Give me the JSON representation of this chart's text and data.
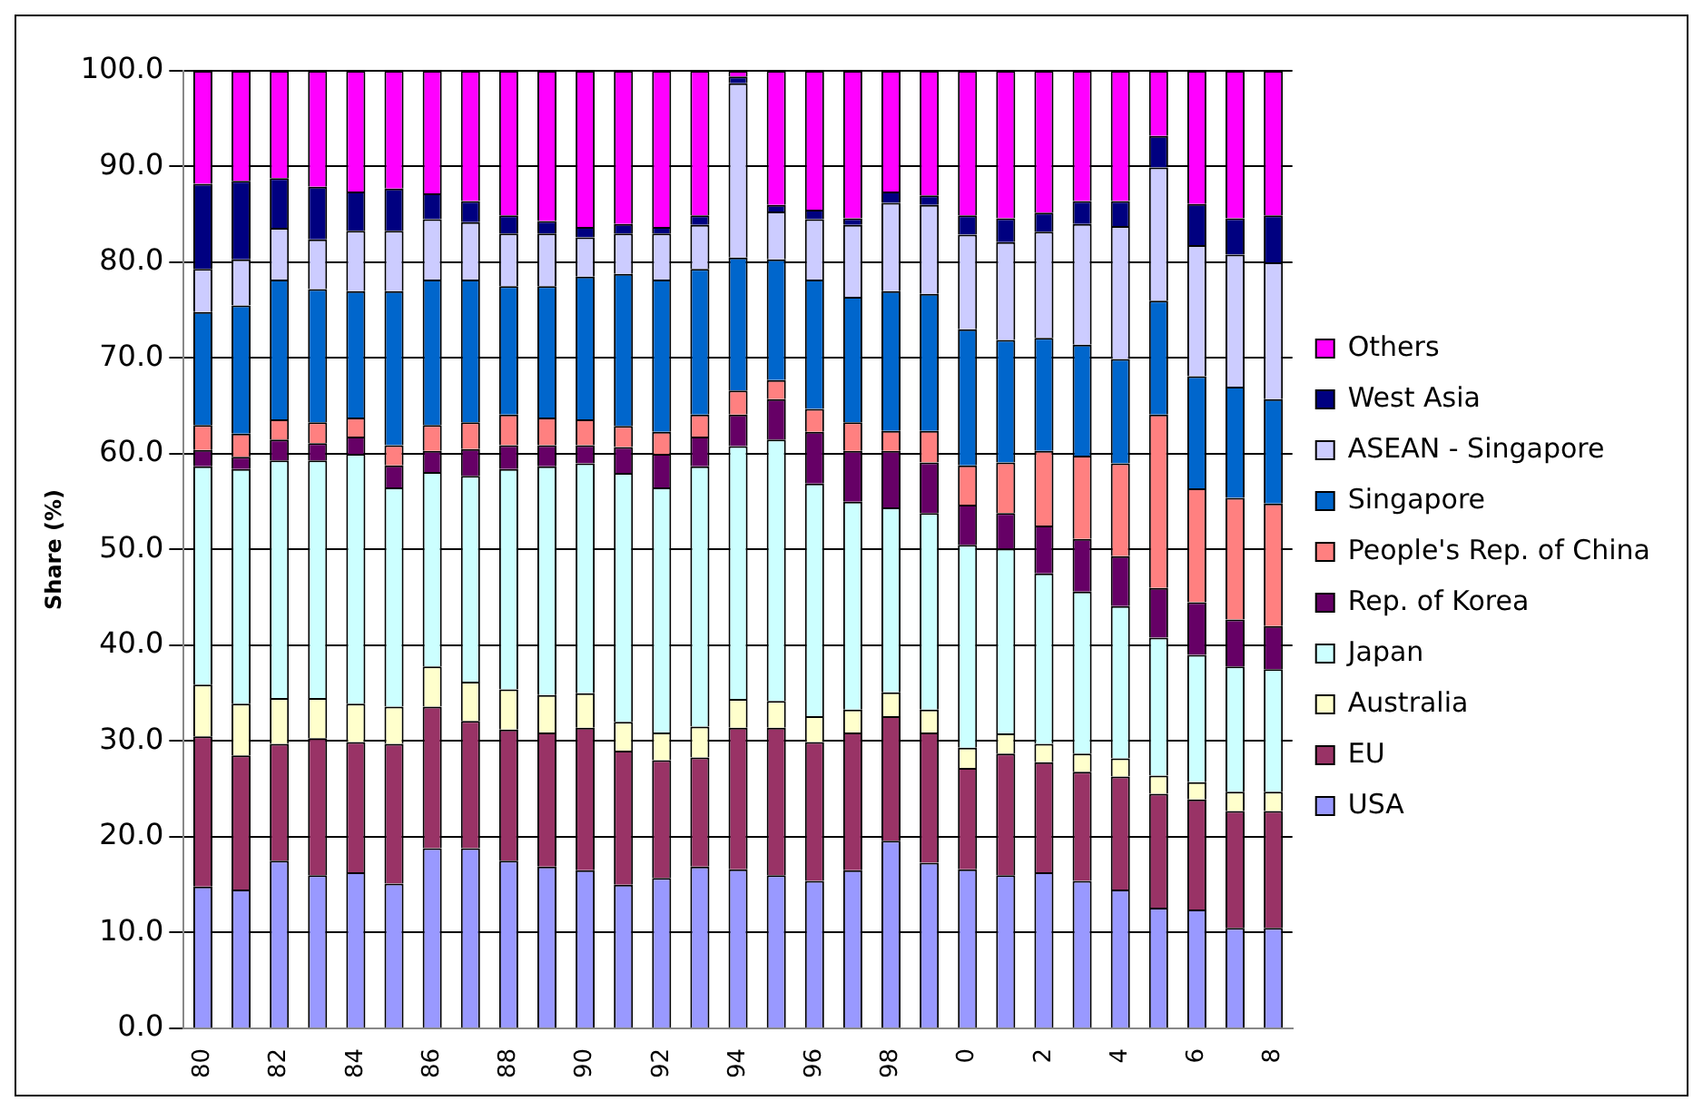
{
  "chart_data": {
    "type": "bar",
    "stacked": true,
    "ylabel": "Share (%)",
    "categories": [
      "80",
      null,
      "82",
      null,
      "84",
      null,
      "86",
      null,
      "88",
      null,
      "90",
      null,
      "92",
      null,
      "94",
      null,
      "96",
      null,
      "98",
      null,
      "0",
      null,
      "2",
      null,
      "4",
      null,
      "6",
      null,
      "8"
    ],
    "series": [
      {
        "name": "USA",
        "color": "#9999ff",
        "values": [
          14.8,
          14.5,
          17.5,
          16.0,
          16.3,
          15.1,
          18.8,
          18.8,
          17.5,
          16.9,
          16.5,
          15.0,
          15.7,
          16.9,
          16.6,
          16.0,
          15.4,
          16.5,
          19.6,
          17.3,
          16.6,
          16.0,
          16.3,
          15.4,
          14.5,
          12.6,
          12.4,
          10.5,
          10.5
        ]
      },
      {
        "name": "EU",
        "color": "#993366",
        "values": [
          15.7,
          14.0,
          12.2,
          14.3,
          13.6,
          14.6,
          14.8,
          13.3,
          13.7,
          14.0,
          14.9,
          14.0,
          12.3,
          11.4,
          14.8,
          15.4,
          14.5,
          14.4,
          13.0,
          13.6,
          10.6,
          12.7,
          11.5,
          11.4,
          11.8,
          11.9,
          11.5,
          12.2,
          12.2
        ]
      },
      {
        "name": "Australia",
        "color": "#ffffcc",
        "values": [
          5.4,
          5.4,
          4.8,
          4.2,
          4.0,
          3.9,
          4.2,
          4.1,
          4.2,
          3.9,
          3.6,
          3.0,
          2.9,
          3.2,
          3.0,
          2.8,
          2.7,
          2.4,
          2.5,
          2.4,
          2.1,
          2.1,
          1.9,
          1.9,
          1.9,
          1.9,
          1.8,
          2.0,
          2.0
        ]
      },
      {
        "name": "Japan",
        "color": "#ccffff",
        "values": [
          22.8,
          24.5,
          24.8,
          24.8,
          26.1,
          22.9,
          20.3,
          21.5,
          23.0,
          23.9,
          24.0,
          26.0,
          25.6,
          27.2,
          26.4,
          27.3,
          24.3,
          21.7,
          19.3,
          20.5,
          21.2,
          19.3,
          17.8,
          16.9,
          15.9,
          14.4,
          13.3,
          13.1,
          12.8
        ]
      },
      {
        "name": "Rep. of Korea",
        "color": "#660066",
        "values": [
          1.7,
          1.3,
          2.2,
          1.8,
          1.8,
          2.3,
          2.2,
          2.8,
          2.5,
          2.2,
          1.9,
          2.7,
          3.5,
          3.1,
          3.3,
          4.2,
          5.4,
          5.3,
          5.9,
          5.3,
          4.2,
          3.7,
          5.0,
          5.5,
          5.2,
          5.2,
          5.5,
          4.9,
          4.5
        ]
      },
      {
        "name": "People's Rep. of China",
        "color": "#ff8080",
        "values": [
          2.6,
          2.4,
          2.1,
          2.2,
          2.0,
          2.1,
          2.7,
          2.8,
          3.2,
          2.9,
          2.7,
          2.2,
          2.3,
          2.3,
          2.5,
          2.0,
          2.4,
          3.0,
          2.1,
          3.3,
          4.1,
          5.3,
          7.8,
          8.7,
          9.7,
          18.1,
          11.9,
          12.7,
          12.8
        ]
      },
      {
        "name": "Singapore",
        "color": "#0066cc",
        "values": [
          11.8,
          13.4,
          14.6,
          13.9,
          13.2,
          16.1,
          15.2,
          14.9,
          13.4,
          13.7,
          14.9,
          15.9,
          15.9,
          15.2,
          13.9,
          12.6,
          13.5,
          13.1,
          14.6,
          14.3,
          14.2,
          12.8,
          11.8,
          11.6,
          10.9,
          11.9,
          11.7,
          11.6,
          10.9
        ]
      },
      {
        "name": "ASEAN - Singapore",
        "color": "#ccccff",
        "values": [
          4.5,
          4.8,
          5.4,
          5.2,
          6.3,
          6.3,
          6.3,
          6.0,
          5.5,
          5.5,
          4.1,
          4.2,
          4.8,
          4.6,
          18.2,
          5.0,
          6.3,
          7.5,
          9.2,
          9.3,
          9.9,
          10.2,
          11.1,
          12.6,
          13.9,
          13.9,
          13.7,
          13.8,
          14.3
        ]
      },
      {
        "name": "West Asia",
        "color": "#000080",
        "values": [
          8.9,
          8.2,
          5.2,
          5.5,
          4.1,
          4.4,
          2.7,
          2.2,
          1.9,
          1.3,
          1.1,
          1.0,
          0.7,
          1.0,
          0.7,
          0.7,
          1.0,
          0.7,
          1.2,
          1.0,
          2.0,
          2.5,
          2.0,
          2.4,
          2.6,
          3.3,
          4.3,
          3.8,
          4.9
        ]
      },
      {
        "name": "Others",
        "color": "#ff00ff",
        "values": [
          11.8,
          11.5,
          11.2,
          12.1,
          12.6,
          12.3,
          12.8,
          13.6,
          15.1,
          15.7,
          16.3,
          16.0,
          16.3,
          15.1,
          0.6,
          14.0,
          14.5,
          15.4,
          12.6,
          13.0,
          15.1,
          15.4,
          14.8,
          13.6,
          13.6,
          6.8,
          13.9,
          15.4,
          15.1
        ]
      }
    ],
    "ylim": [
      0,
      100
    ],
    "yticks": [
      {
        "value": 0,
        "label": "0.0"
      },
      {
        "value": 10,
        "label": "10.0"
      },
      {
        "value": 20,
        "label": "20.0"
      },
      {
        "value": 30,
        "label": "30.0"
      },
      {
        "value": 40,
        "label": "40.0"
      },
      {
        "value": 50,
        "label": "50.0"
      },
      {
        "value": 60,
        "label": "60.0"
      },
      {
        "value": 70,
        "label": "70.0"
      },
      {
        "value": 80,
        "label": "80.0"
      },
      {
        "value": 90,
        "label": "90.0"
      },
      {
        "value": 100,
        "label": "100.0"
      }
    ],
    "grid": "y",
    "legend": "right"
  }
}
